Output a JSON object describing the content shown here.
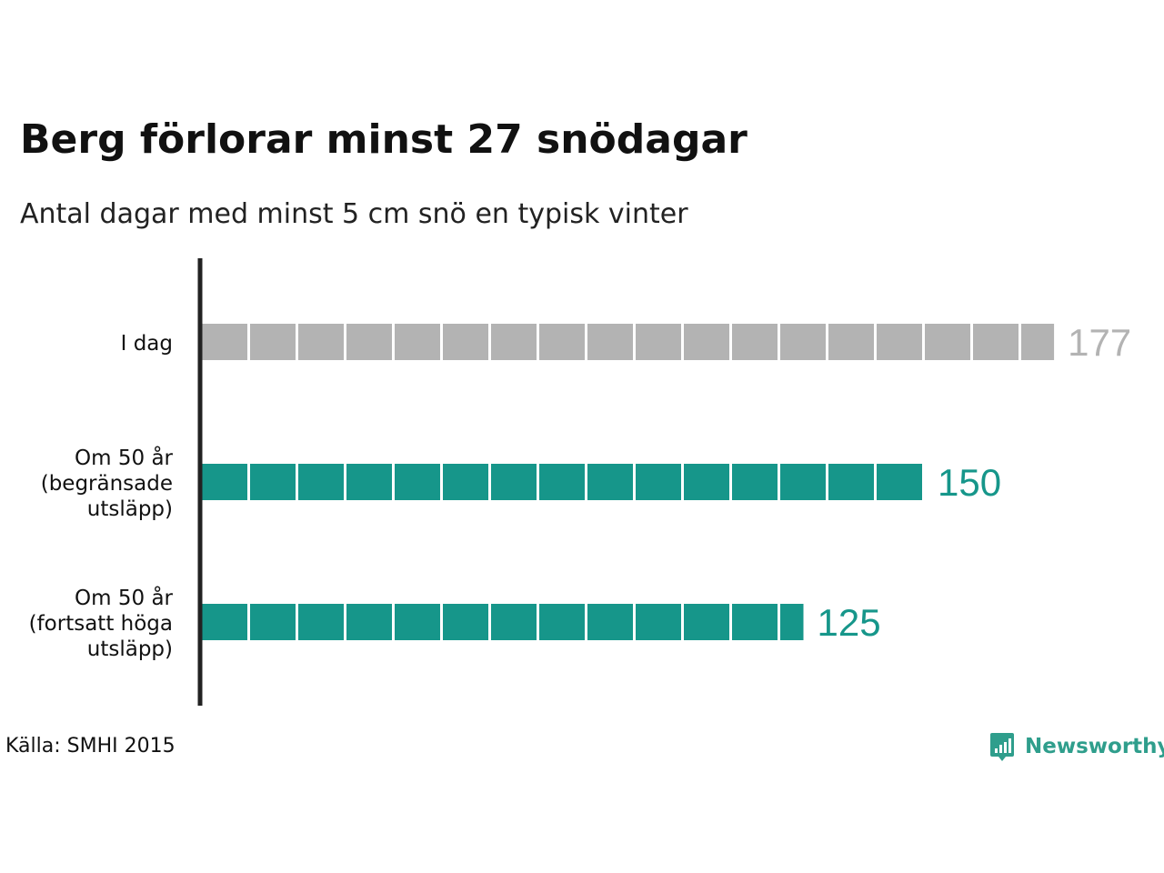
{
  "title": "Berg förlorar minst 27 snödagar",
  "subtitle": "Antal dagar med minst 5 cm snö en typisk vinter",
  "source": "Källa: SMHI 2015",
  "brand": {
    "name": "Newsworthy",
    "color": "#2f9e8c",
    "icon": "bar-chart-speech-bubble-icon"
  },
  "colors": {
    "today": "#b3b3b3",
    "future": "#16968a",
    "axis": "#222222",
    "label": "#111111"
  },
  "chart_data": {
    "type": "bar",
    "orientation": "horizontal",
    "unit_block_days": 10,
    "categories": [
      [
        "I dag"
      ],
      [
        "Om 50 år",
        "(begränsade",
        "utsläpp)"
      ],
      [
        "Om 50 år",
        "(fortsatt höga",
        "utsläpp)"
      ]
    ],
    "values": [
      177,
      150,
      125
    ],
    "value_labels": [
      "177",
      "150",
      "125"
    ],
    "bar_colors": [
      "#b3b3b3",
      "#16968a",
      "#16968a"
    ],
    "xlim": [
      0,
      177
    ],
    "grid": false,
    "legend": "none"
  }
}
